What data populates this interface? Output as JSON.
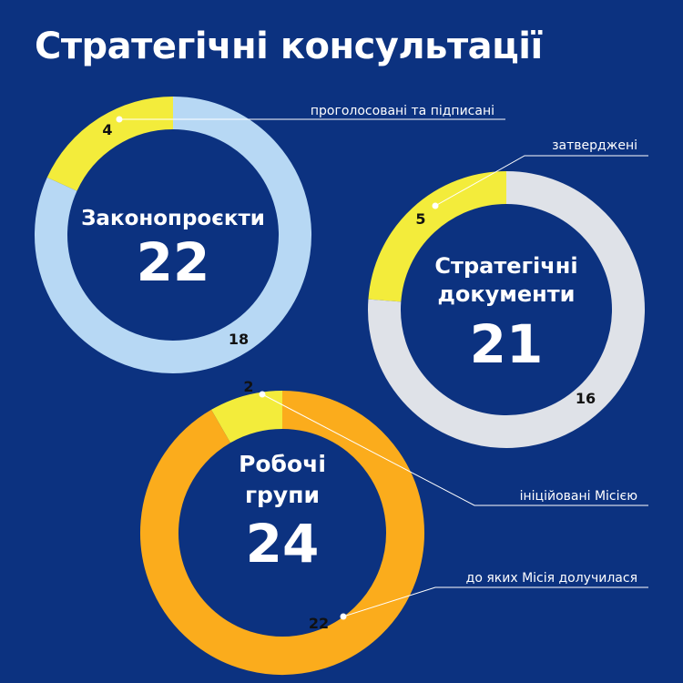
{
  "title": "Стратегічні консультації",
  "chart_data": [
    {
      "type": "pie",
      "title": "Законопроєкти",
      "total": "22",
      "series": [
        {
          "value": 4,
          "label": "4",
          "color": "#f3ec3b"
        },
        {
          "value": 18,
          "label": "18",
          "color": "#b7d8f4"
        }
      ],
      "annotation": "проголосовані та підписані"
    },
    {
      "type": "pie",
      "title": [
        "Стратегічні",
        "документи"
      ],
      "total": "21",
      "series": [
        {
          "value": 5,
          "label": "5",
          "color": "#f3ec3b"
        },
        {
          "value": 16,
          "label": "16",
          "color": "#dfe2e8"
        }
      ],
      "annotation": "затверджені"
    },
    {
      "type": "pie",
      "title": [
        "Робочі",
        "групи"
      ],
      "total": "24",
      "series": [
        {
          "value": 2,
          "label": "2",
          "color": "#f3ec3b"
        },
        {
          "value": 22,
          "label": "22",
          "color": "#fbac1c"
        }
      ],
      "annotations": [
        "ініційовані Місією",
        "до яких Місія долучилася"
      ]
    }
  ]
}
